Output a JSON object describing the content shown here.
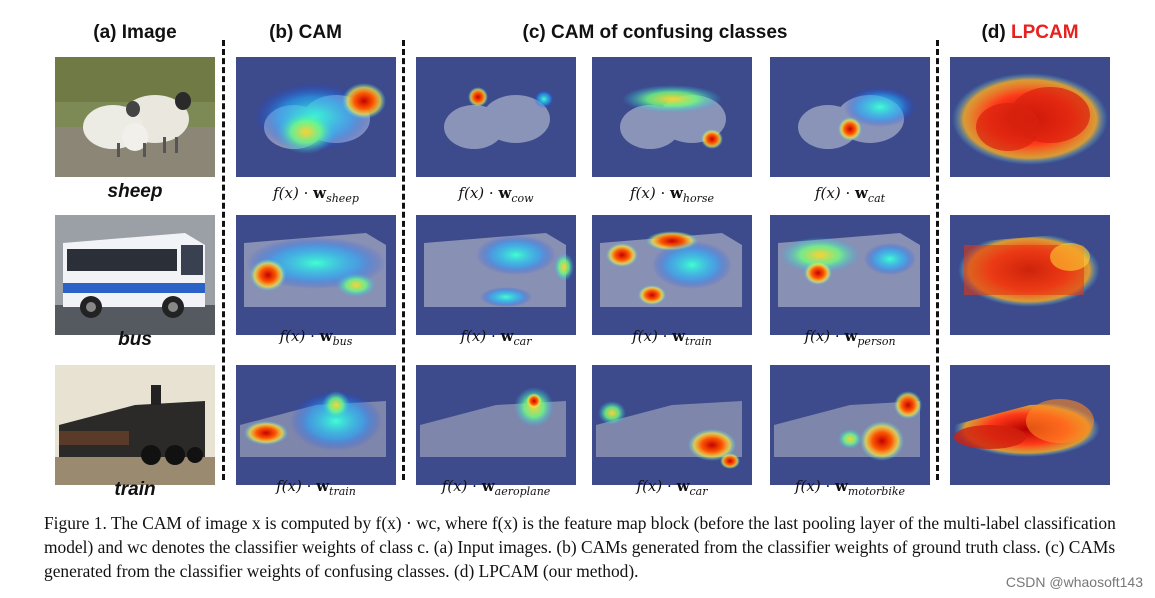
{
  "figure": {
    "headers": {
      "a": "(a)  Image",
      "b": "(b)  CAM",
      "c": "(c)  CAM of confusing classes",
      "d_prefix": "(d)  ",
      "d_name": "LPCAM"
    },
    "rows": [
      {
        "class": "sheep",
        "cam": {
          "fx": "f(x)",
          "dot": " · ",
          "w": "w",
          "sub": "sheep"
        },
        "confusing": [
          {
            "fx": "f(x)",
            "dot": " · ",
            "w": "w",
            "sub": "cow"
          },
          {
            "fx": "f(x)",
            "dot": " · ",
            "w": "w",
            "sub": "horse"
          },
          {
            "fx": "f(x)",
            "dot": " · ",
            "w": "w",
            "sub": "cat"
          }
        ]
      },
      {
        "class": "bus",
        "cam": {
          "fx": "f(x)",
          "dot": " · ",
          "w": "w",
          "sub": "bus"
        },
        "confusing": [
          {
            "fx": "f(x)",
            "dot": " · ",
            "w": "w",
            "sub": "car"
          },
          {
            "fx": "f(x)",
            "dot": " · ",
            "w": "w",
            "sub": "train"
          },
          {
            "fx": "f(x)",
            "dot": " · ",
            "w": "w",
            "sub": "person"
          }
        ]
      },
      {
        "class": "train",
        "cam": {
          "fx": "f(x)",
          "dot": " · ",
          "w": "w",
          "sub": "train"
        },
        "confusing": [
          {
            "fx": "f(x)",
            "dot": " · ",
            "w": "w",
            "sub": "aeroplane"
          },
          {
            "fx": "f(x)",
            "dot": " · ",
            "w": "w",
            "sub": "car"
          },
          {
            "fx": "f(x)",
            "dot": " · ",
            "w": "w",
            "sub": "motorbike"
          }
        ]
      }
    ]
  },
  "caption": {
    "label": "Figure 1.",
    "text": "The CAM of image x is computed by f(x) · wc, where f(x) is the feature map block (before the last pooling layer of the multi-label classification model) and wc denotes the classifier weights of class c. (a) Input images. (b) CAMs generated from the classifier weights of ground truth class. (c) CAMs generated from the classifier weights of confusing classes. (d) LPCAM (our method)."
  },
  "watermark": "CSDN @whaosoft143"
}
